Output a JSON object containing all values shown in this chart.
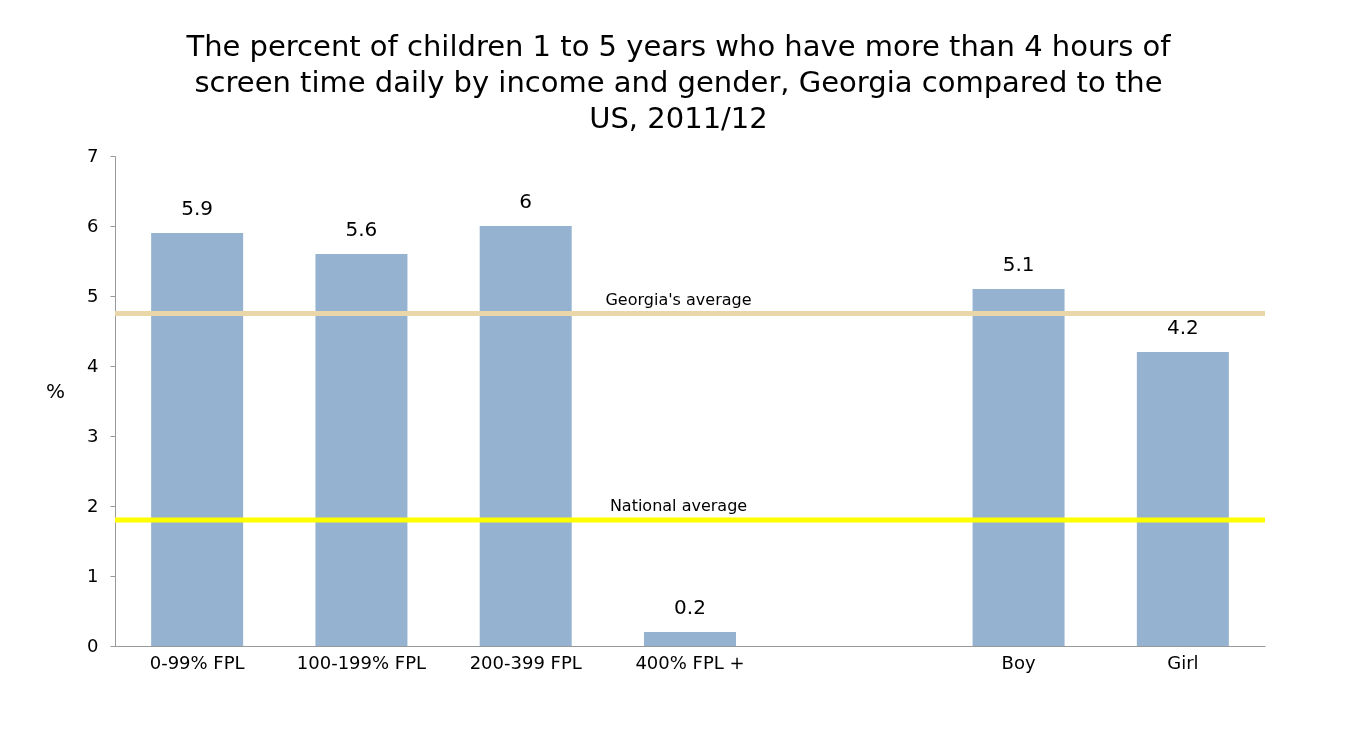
{
  "chart_data": {
    "type": "bar",
    "title": "The percent of children 1 to 5 years who have more than 4 hours of screen time daily by income and gender, Georgia compared to the US, 2011/12",
    "ylabel": "%",
    "categories": [
      "0-99% FPL",
      "100-199% FPL",
      "200-399 FPL",
      "400% FPL +",
      null,
      "Boy",
      "Girl"
    ],
    "values": [
      5.9,
      5.6,
      6,
      0.2,
      null,
      5.1,
      4.2
    ],
    "color": "#95b3d0",
    "ylim": [
      0,
      7
    ],
    "yticks": [
      0,
      1,
      2,
      3,
      4,
      5,
      6,
      7
    ],
    "data_labels": true,
    "grid": false,
    "ref_lines": [
      {
        "axis": "y",
        "value": 4.75,
        "label": "Georgia's average",
        "color": "#ead7a9"
      },
      {
        "axis": "y",
        "value": 1.8,
        "label": "National average",
        "color": "#ffff00"
      }
    ]
  }
}
